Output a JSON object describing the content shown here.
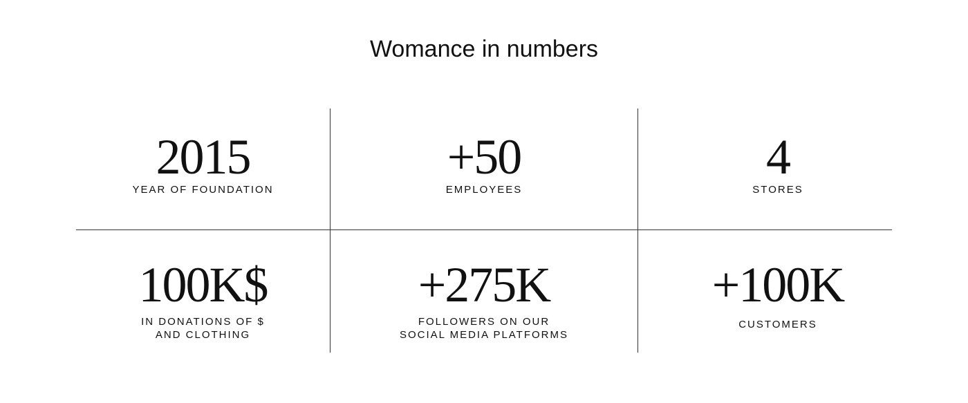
{
  "title": "Womance in numbers",
  "stats": [
    {
      "value": "2015",
      "label": "YEAR OF FOUNDATION"
    },
    {
      "value": "+50",
      "label": "EMPLOYEES"
    },
    {
      "value": "4",
      "label": "STORES"
    },
    {
      "value": "100K$",
      "label_lines": [
        "IN DONATIONS OF $",
        "AND CLOTHING"
      ]
    },
    {
      "value": "+275K",
      "label_lines": [
        "FOLLOWERS ON OUR",
        "SOCIAL MEDIA PLATFORMS"
      ]
    },
    {
      "value": "+100K",
      "label": "CUSTOMERS"
    }
  ]
}
